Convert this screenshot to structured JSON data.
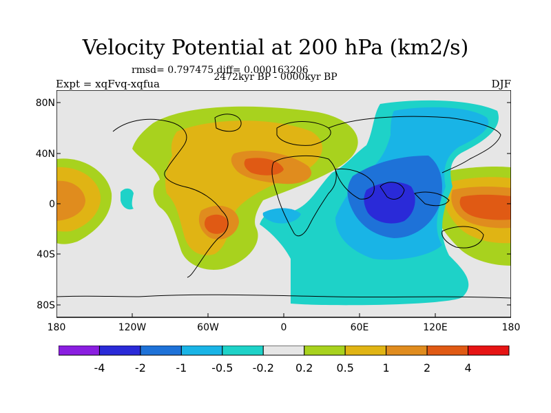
{
  "title": "Velocity Potential at 200 hPa (km2/s)",
  "stats": "rmsd= 0.797475 diff= 0.000163206",
  "experiment": "Expt = xqFvq-xqfua",
  "period": "2472kyr BP - 0000kyr BP",
  "season": "DJF",
  "lat_labels": [
    "80N",
    "40N",
    "0",
    "40S",
    "80S"
  ],
  "lon_labels": [
    "180",
    "120W",
    "60W",
    "0",
    "60E",
    "120E",
    "180"
  ],
  "colorbar": {
    "labels": [
      "-4",
      "-2",
      "-1",
      "-0.5",
      "-0.2",
      "0.2",
      "0.5",
      "1",
      "2",
      "4"
    ],
    "colors": [
      "#8a1ee0",
      "#2a2ad8",
      "#1e72d8",
      "#19b4e6",
      "#1ed2c8",
      "#e6e6e6",
      "#a8d21e",
      "#e0b414",
      "#e08c1e",
      "#e05a14",
      "#e61414"
    ]
  },
  "field_colors": {
    "neutral": "#e6e6e6",
    "pos_02": "#a8d21e",
    "pos_05": "#e0b414",
    "pos_1": "#e08c1e",
    "pos_2": "#e05a14",
    "neg_02": "#1ed2c8",
    "neg_05": "#19b4e6",
    "neg_1": "#1e72d8",
    "neg_2": "#2a2ad8"
  }
}
